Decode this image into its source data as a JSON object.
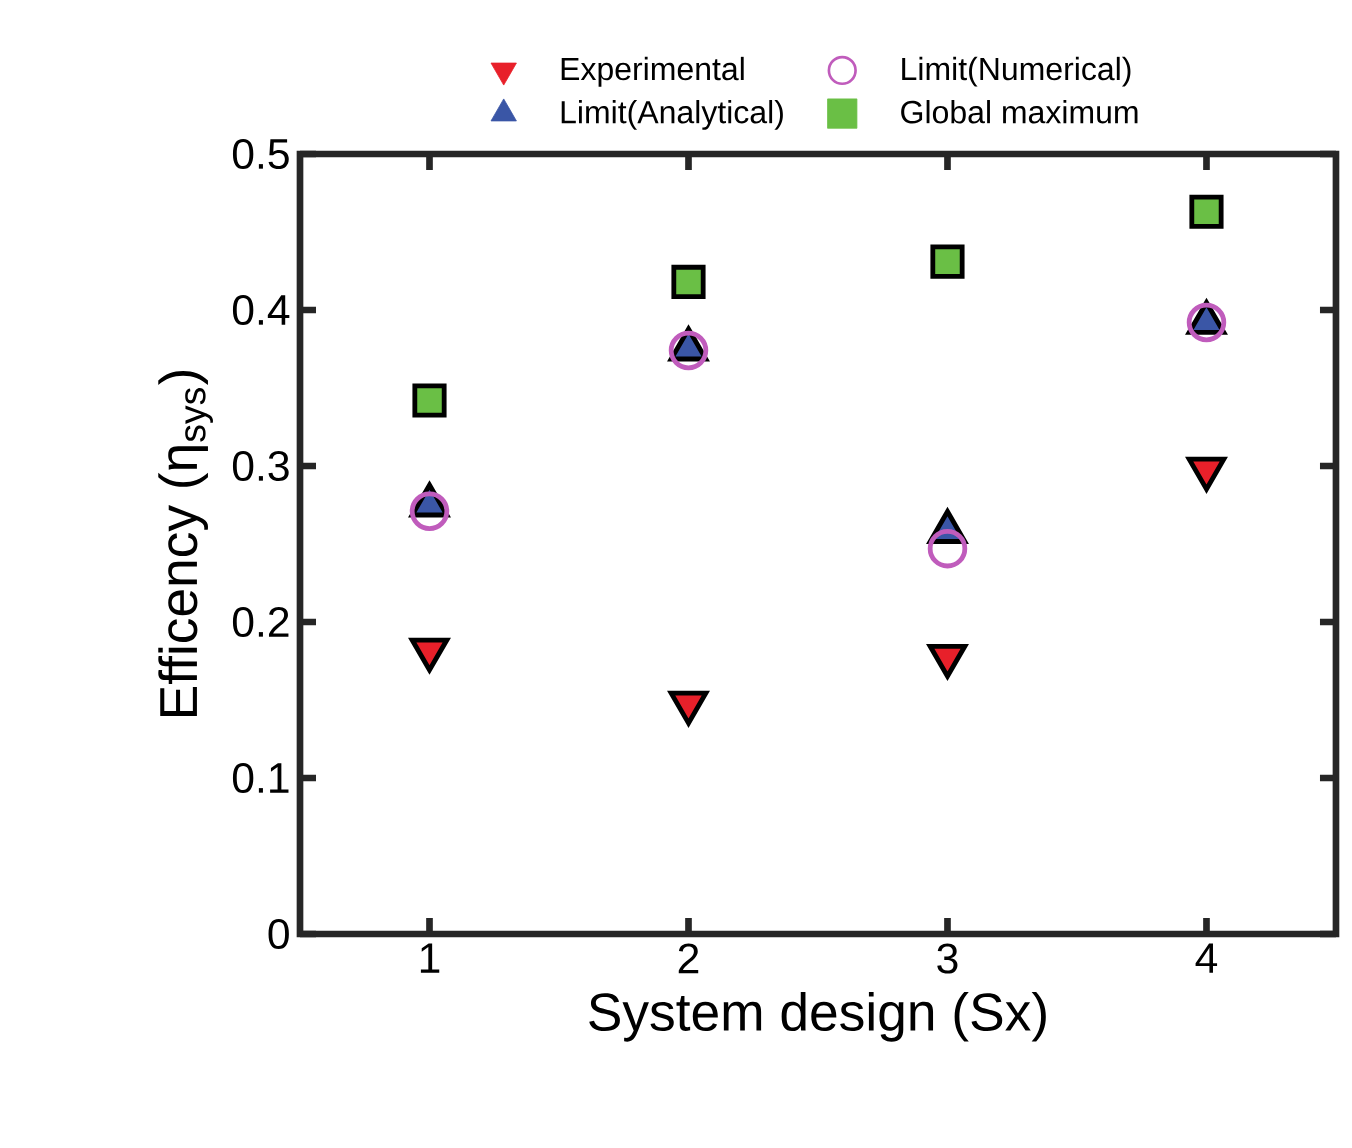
{
  "chart_data": {
    "type": "scatter",
    "xlabel": "System design (Sx)",
    "ylabel": "Efficency (η$_{sys}$)",
    "xlim": [
      0.5,
      4.5
    ],
    "ylim": [
      0,
      0.5
    ],
    "xticks": [
      1,
      2,
      3,
      4
    ],
    "yticks": [
      0,
      0.1,
      0.2,
      0.3,
      0.4,
      0.5
    ],
    "legend": "top",
    "grid": false,
    "x": [
      1,
      2,
      3,
      4
    ],
    "series": [
      {
        "name": "Experimental",
        "color": "#e8202a",
        "marker": "triangle_down",
        "values": [
          0.182,
          0.148,
          0.178,
          0.298
        ]
      },
      {
        "name": "Limit(Analytical)",
        "color": "#3a56a6",
        "marker": "triangle",
        "values": [
          0.275,
          0.375,
          0.258,
          0.392
        ]
      },
      {
        "name": "Limit(Numerical)",
        "color": "#c05cbc",
        "marker": "circle",
        "values": [
          0.271,
          0.374,
          0.247,
          0.392
        ]
      },
      {
        "name": "Global maximum",
        "color": "#6abf45",
        "marker": "square",
        "values": [
          0.342,
          0.418,
          0.431,
          0.463
        ]
      }
    ]
  }
}
